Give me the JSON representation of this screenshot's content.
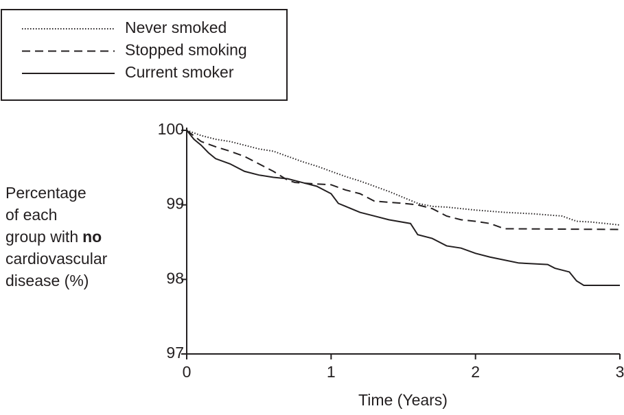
{
  "chart_data": {
    "type": "line",
    "x_label": "Time (Years)",
    "y_label": {
      "lines": [
        "Percentage",
        "of each",
        "group with",
        "cardiovascular",
        "disease (%)"
      ],
      "bold": "no"
    },
    "xlim": [
      0,
      3
    ],
    "xticks": [
      0,
      1,
      2,
      3
    ],
    "ylim": [
      97,
      100
    ],
    "yticks": [
      97,
      98,
      99,
      100
    ],
    "series": [
      {
        "name": "Never smoked",
        "color": "#231f20",
        "dash": "dotted",
        "x": [
          0,
          0.1,
          0.2,
          0.3,
          0.4,
          0.5,
          0.6,
          0.7,
          0.8,
          0.9,
          1.0,
          1.1,
          1.2,
          1.3,
          1.4,
          1.5,
          1.6,
          1.7,
          1.8,
          1.9,
          2.0,
          2.2,
          2.4,
          2.6,
          2.7,
          2.8,
          2.9,
          3.0
        ],
        "values": [
          100,
          99.93,
          99.88,
          99.85,
          99.8,
          99.75,
          99.72,
          99.65,
          99.58,
          99.52,
          99.45,
          99.38,
          99.32,
          99.25,
          99.18,
          99.1,
          99.02,
          98.98,
          98.97,
          98.95,
          98.93,
          98.9,
          98.88,
          98.85,
          98.78,
          98.77,
          98.75,
          98.73
        ]
      },
      {
        "name": "Stopped smoking",
        "color": "#231f20",
        "dash": "dashed",
        "x": [
          0,
          0.1,
          0.2,
          0.3,
          0.4,
          0.5,
          0.6,
          0.7,
          0.75,
          0.9,
          1.0,
          1.1,
          1.2,
          1.3,
          1.5,
          1.6,
          1.7,
          1.8,
          1.9,
          2.0,
          2.1,
          2.2,
          3.0
        ],
        "values": [
          100,
          99.85,
          99.78,
          99.72,
          99.65,
          99.55,
          99.45,
          99.33,
          99.3,
          99.28,
          99.27,
          99.2,
          99.15,
          99.05,
          99.02,
          99.0,
          98.95,
          98.85,
          98.8,
          98.78,
          98.75,
          98.68,
          98.67
        ]
      },
      {
        "name": "Current smoker",
        "color": "#231f20",
        "dash": "solid",
        "x": [
          0,
          0.05,
          0.1,
          0.15,
          0.2,
          0.3,
          0.4,
          0.5,
          0.6,
          0.7,
          0.8,
          0.9,
          1.0,
          1.05,
          1.1,
          1.2,
          1.3,
          1.4,
          1.55,
          1.6,
          1.7,
          1.8,
          1.9,
          2.0,
          2.1,
          2.3,
          2.5,
          2.55,
          2.65,
          2.7,
          2.75,
          3.0
        ],
        "values": [
          100,
          99.88,
          99.8,
          99.7,
          99.62,
          99.55,
          99.45,
          99.4,
          99.37,
          99.35,
          99.3,
          99.25,
          99.15,
          99.02,
          98.98,
          98.9,
          98.85,
          98.8,
          98.75,
          98.6,
          98.55,
          98.45,
          98.42,
          98.35,
          98.3,
          98.22,
          98.2,
          98.15,
          98.1,
          97.98,
          97.92,
          97.92
        ]
      }
    ]
  }
}
